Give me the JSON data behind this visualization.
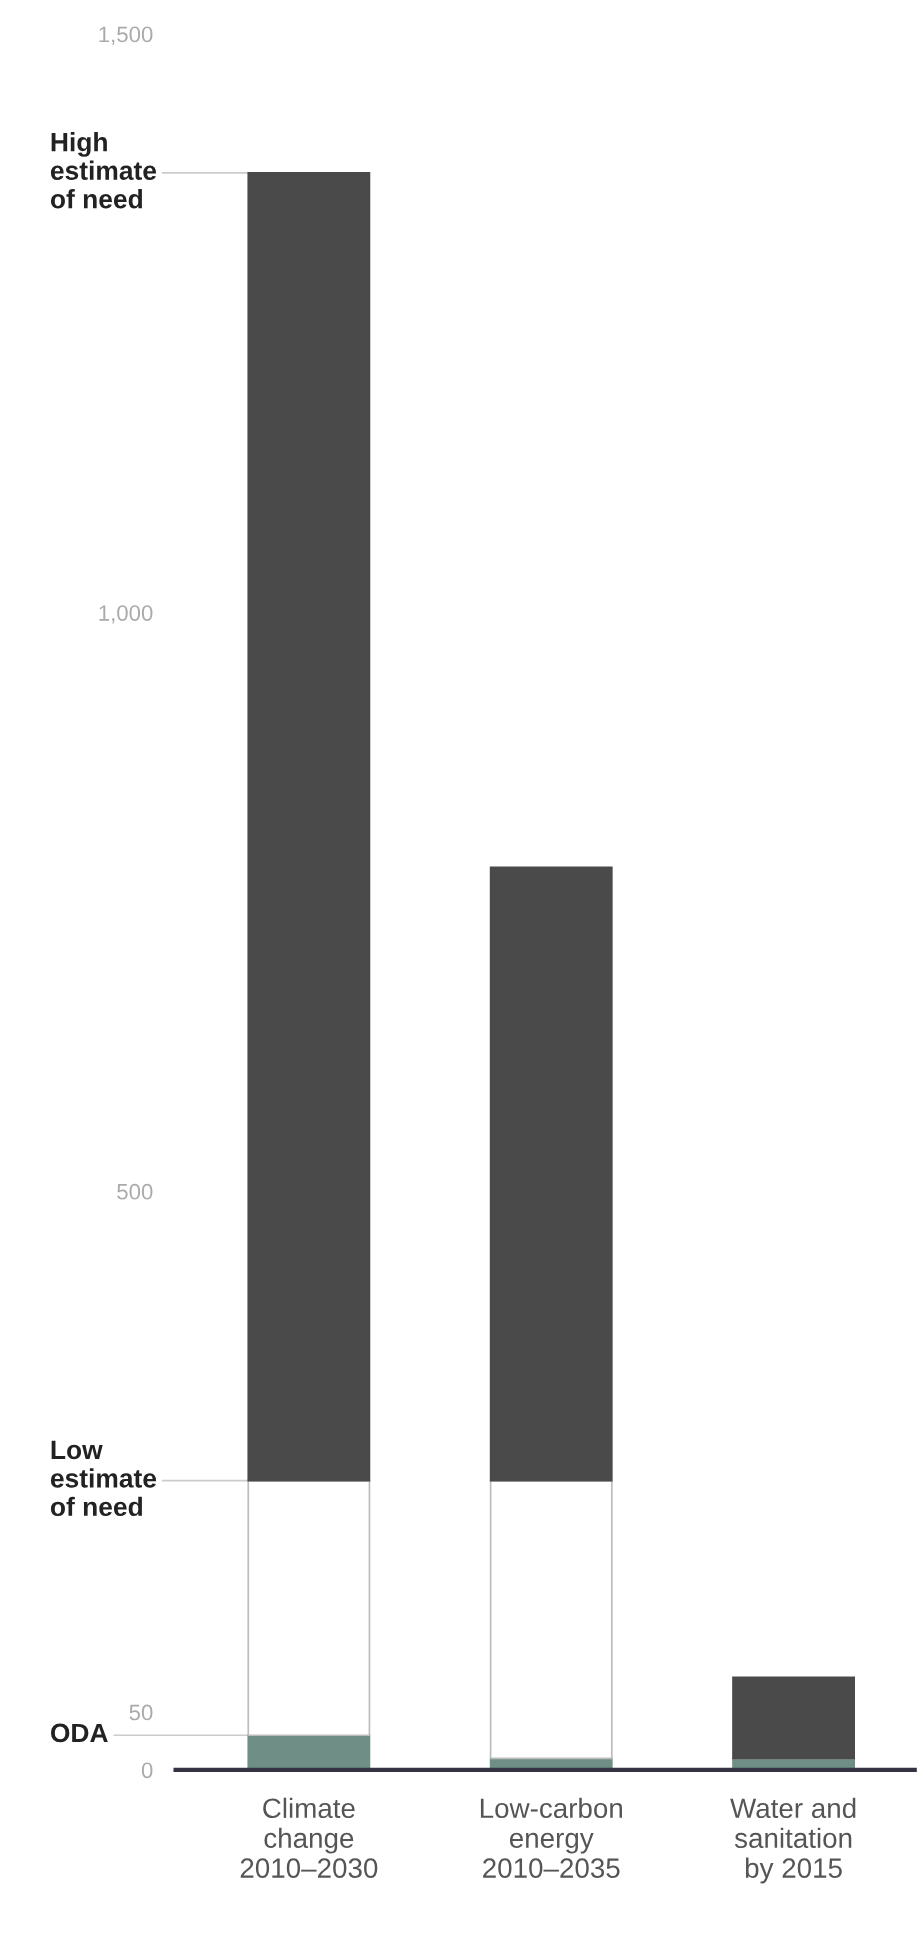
{
  "chart_data": {
    "type": "bar",
    "stacked": true,
    "categories": [
      "Climate\nchange\n2010–2030",
      "Low-carbon\nenergy\n2010–2035",
      "Water and\nsanitation\nby 2015"
    ],
    "series": [
      {
        "color": "#6f8f86",
        "values": [
          30,
          10,
          10
        ]
      },
      {
        "color": "#ffffff",
        "values": [
          220,
          240,
          0
        ]
      },
      {
        "color": "#4a4a4a",
        "values": [
          1130,
          530,
          70
        ]
      }
    ],
    "ylim": [
      0,
      1500
    ],
    "yticks": [
      0,
      50,
      500,
      {
        "value": 1000,
        "label": "1,000"
      },
      {
        "value": 1500,
        "label": "1,500"
      }
    ],
    "annotations": [
      {
        "text": "High\nestimate\nof need",
        "x": "Climate\nchange\n2010–2030",
        "y": 1380
      },
      {
        "text": "Low\nestimate\nof need",
        "x": "Climate\nchange\n2010–2030",
        "y": 250
      },
      {
        "text": "ODA",
        "x": "Climate\nchange\n2010–2030",
        "y": 30
      }
    ],
    "grid": false,
    "legend": false
  }
}
